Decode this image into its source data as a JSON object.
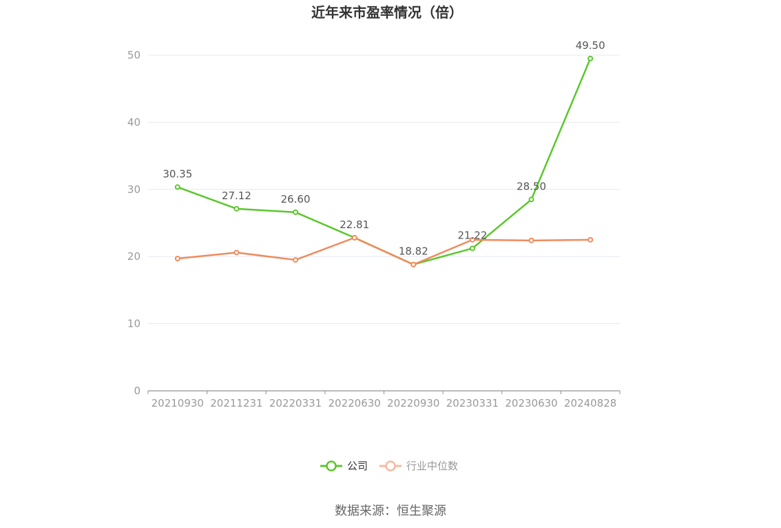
{
  "chart_data": {
    "type": "line",
    "title": "近年来市盈率情况（倍）",
    "categories": [
      "20210930",
      "20211231",
      "20220331",
      "20220630",
      "20220930",
      "20230331",
      "20230630",
      "20240828"
    ],
    "series": [
      {
        "name": "公司",
        "color": "#5bc72c",
        "values": [
          30.35,
          27.12,
          26.6,
          22.81,
          18.82,
          21.22,
          28.5,
          49.5
        ],
        "labels": [
          "30.35",
          "27.12",
          "26.60",
          "22.81",
          "18.82",
          "21.22",
          "28.50",
          "49.50"
        ]
      },
      {
        "name": "行业中位数",
        "color": "#f08a5d",
        "values": [
          19.7,
          20.6,
          19.5,
          22.8,
          18.8,
          22.5,
          22.4,
          22.5
        ]
      }
    ],
    "ylim": [
      0,
      50
    ],
    "yticks": [
      "0",
      "10",
      "20",
      "30",
      "40",
      "50"
    ],
    "grid": true,
    "legend_position": "bottom"
  },
  "source_text": "数据来源：恒生聚源"
}
